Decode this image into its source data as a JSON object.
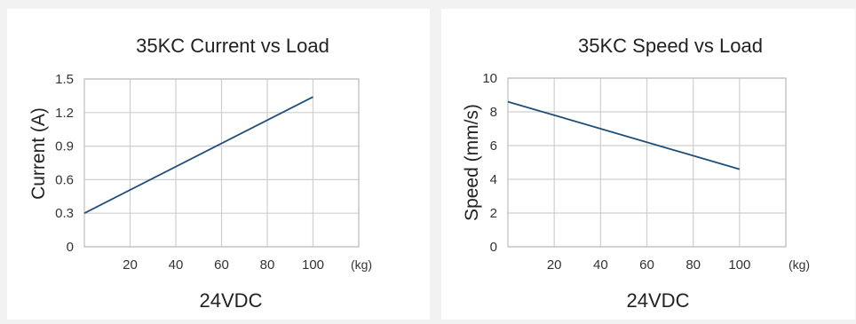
{
  "chart_data": [
    {
      "type": "line",
      "title": "35KC Current vs Load",
      "ylabel": "Current (A)",
      "xlabel": "",
      "x_unit": "(kg)",
      "footer": "24VDC",
      "xlim": [
        0,
        100
      ],
      "ylim": [
        0,
        1.5
      ],
      "x_ticks": [
        "20",
        "40",
        "60",
        "80",
        "100"
      ],
      "y_ticks": [
        "0",
        "0.3",
        "0.6",
        "0.9",
        "1.2",
        "1.5"
      ],
      "grid": true,
      "series": [
        {
          "x": [
            0,
            100
          ],
          "values": [
            0.3,
            1.34
          ],
          "color": "#1f4e79"
        }
      ]
    },
    {
      "type": "line",
      "title": "35KC Speed vs Load",
      "ylabel": "Speed (mm/s)",
      "xlabel": "",
      "x_unit": "(kg)",
      "footer": "24VDC",
      "xlim": [
        0,
        100
      ],
      "ylim": [
        0,
        10
      ],
      "x_ticks": [
        "20",
        "40",
        "60",
        "80",
        "100"
      ],
      "y_ticks": [
        "0",
        "2",
        "4",
        "6",
        "8",
        "10"
      ],
      "grid": true,
      "series": [
        {
          "x": [
            0,
            100
          ],
          "values": [
            8.6,
            4.6
          ],
          "color": "#1f4e79"
        }
      ]
    }
  ]
}
